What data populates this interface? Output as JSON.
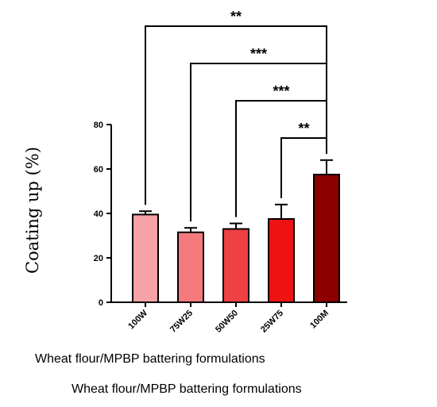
{
  "chart_data": {
    "type": "bar",
    "categories": [
      "100W",
      "75W25",
      "50W50",
      "25W75",
      "100M"
    ],
    "values": [
      39.5,
      31.5,
      33,
      37.5,
      57.5
    ],
    "errors": [
      1.5,
      2,
      2.5,
      6.5,
      6.5
    ],
    "colors": [
      "#f7a2a6",
      "#f47a7d",
      "#ef4043",
      "#ee1212",
      "#8c0000"
    ],
    "ylabel": "Coating up (%)",
    "xlabel": "Wheat flour/MPBP battering formulations",
    "xlabel_repeat": "Wheat flour/MPBP battering formulations",
    "ylim": [
      0,
      80
    ],
    "yticks": [
      0,
      20,
      40,
      60,
      80
    ],
    "grid": false,
    "significance": [
      {
        "from": "100W",
        "to": "100M",
        "label": "**"
      },
      {
        "from": "75W25",
        "to": "100M",
        "label": "***"
      },
      {
        "from": "50W50",
        "to": "100M",
        "label": "***"
      },
      {
        "from": "25W75",
        "to": "100M",
        "label": "**"
      }
    ]
  }
}
